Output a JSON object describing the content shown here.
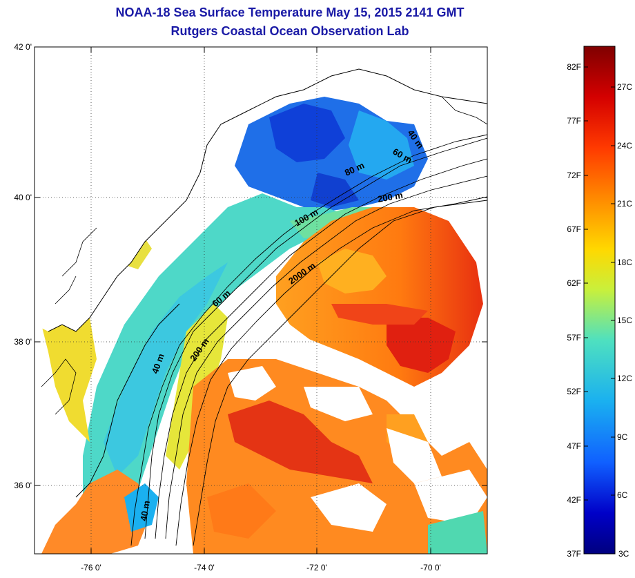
{
  "header": {
    "title": "NOAA-18 Sea Surface Temperature May 15, 2015 2141 GMT",
    "subtitle": "Rutgers Coastal Ocean Observation Lab"
  },
  "map": {
    "latitude_labels": [
      "42 0'",
      "40 0'",
      "38 0'",
      "36 0'"
    ],
    "longitude_labels": [
      "-76 0'",
      "-74 0'",
      "-72 0'",
      "-70 0'"
    ],
    "latitude_values": [
      42,
      40,
      38,
      36
    ],
    "longitude_values": [
      -76,
      -74,
      -72,
      -70
    ],
    "grid": "dotted",
    "bathymetry_labels": [
      "40 m",
      "60 m",
      "80 m",
      "200 m",
      "100 m",
      "2000 m",
      "60 m",
      "200 m",
      "40 m",
      "40 m"
    ]
  },
  "colorbar": {
    "fahrenheit_labels": [
      "82F",
      "77F",
      "72F",
      "67F",
      "62F",
      "57F",
      "52F",
      "47F",
      "42F",
      "37F"
    ],
    "celsius_labels": [
      "27C",
      "24C",
      "21C",
      "18C",
      "15C",
      "12C",
      "9C",
      "6C",
      "3C"
    ],
    "colors": [
      "#7f0000",
      "#d40000",
      "#ff3a00",
      "#ff8a00",
      "#ffd800",
      "#c8f03c",
      "#4ee0c0",
      "#1ab0f0",
      "#1060ff",
      "#0000c8",
      "#00007f"
    ]
  },
  "colors": {
    "title": "#1a1aa6",
    "land": "#ffffff",
    "coast": "#000000"
  }
}
